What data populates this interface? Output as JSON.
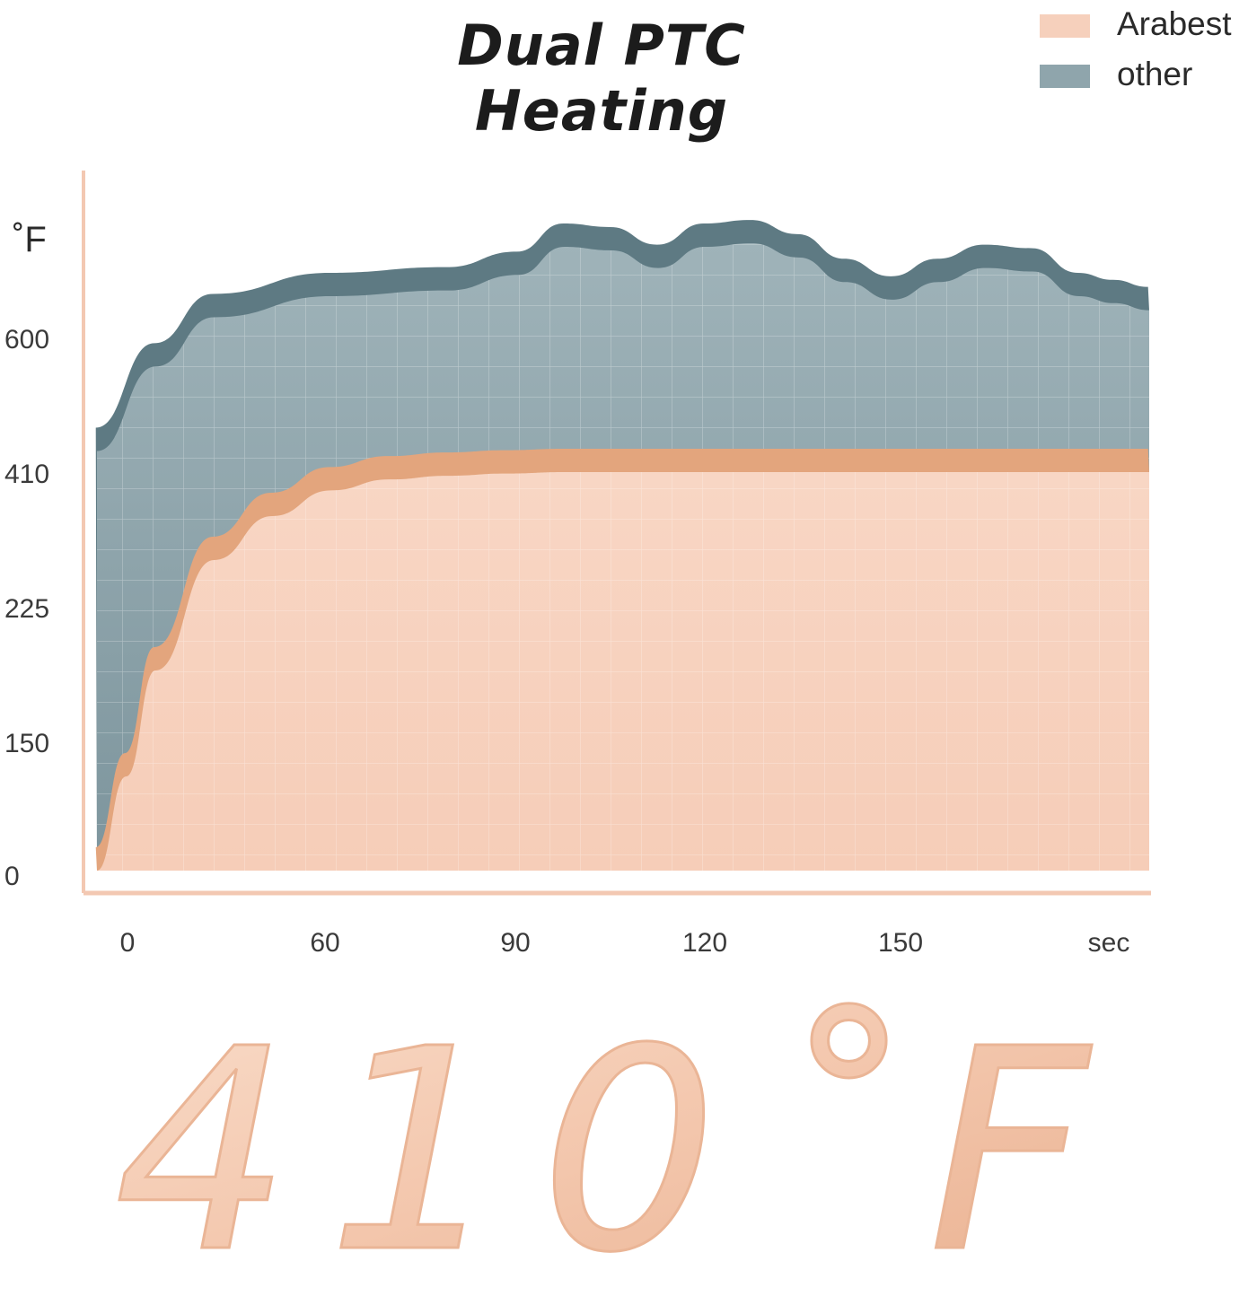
{
  "header": {
    "title": "Dual PTC Heating"
  },
  "legend": [
    {
      "label": "Arabest",
      "color": "#f6d0bc"
    },
    {
      "label": "other",
      "color": "#8fa5ac"
    }
  ],
  "chart_data": {
    "type": "area",
    "title": "Dual PTC Heating",
    "ylabel": "˚F",
    "xlabel": "sec",
    "y_ticks": [
      "600",
      "410",
      "225",
      "150",
      "0"
    ],
    "x_ticks": [
      "0",
      "60",
      "90",
      "120",
      "150"
    ],
    "series": [
      {
        "name": "other",
        "color": "#8fa5ac",
        "x": [
          0,
          10,
          20,
          40,
          60,
          72,
          80,
          88,
          96,
          104,
          112,
          120,
          128,
          136,
          144,
          152,
          160,
          168,
          174,
          180
        ],
        "y": [
          440,
          560,
          630,
          660,
          668,
          690,
          730,
          725,
          700,
          730,
          735,
          715,
          680,
          655,
          680,
          700,
          695,
          660,
          650,
          640
        ]
      },
      {
        "name": "Arabest",
        "color": "#f6d0bc",
        "x": [
          0,
          5,
          10,
          20,
          30,
          40,
          50,
          60,
          70,
          80,
          100,
          120,
          140,
          160,
          180
        ],
        "y": [
          0,
          110,
          190,
          290,
          350,
          385,
          400,
          405,
          408,
          410,
          410,
          410,
          410,
          410,
          410
        ]
      }
    ],
    "big_label": "410˚F"
  },
  "colors": {
    "axis": "#f3c8b2",
    "other_edge": "#5e7a83",
    "arabest_edge": "#e3a57d",
    "grid": "#ffffff"
  }
}
